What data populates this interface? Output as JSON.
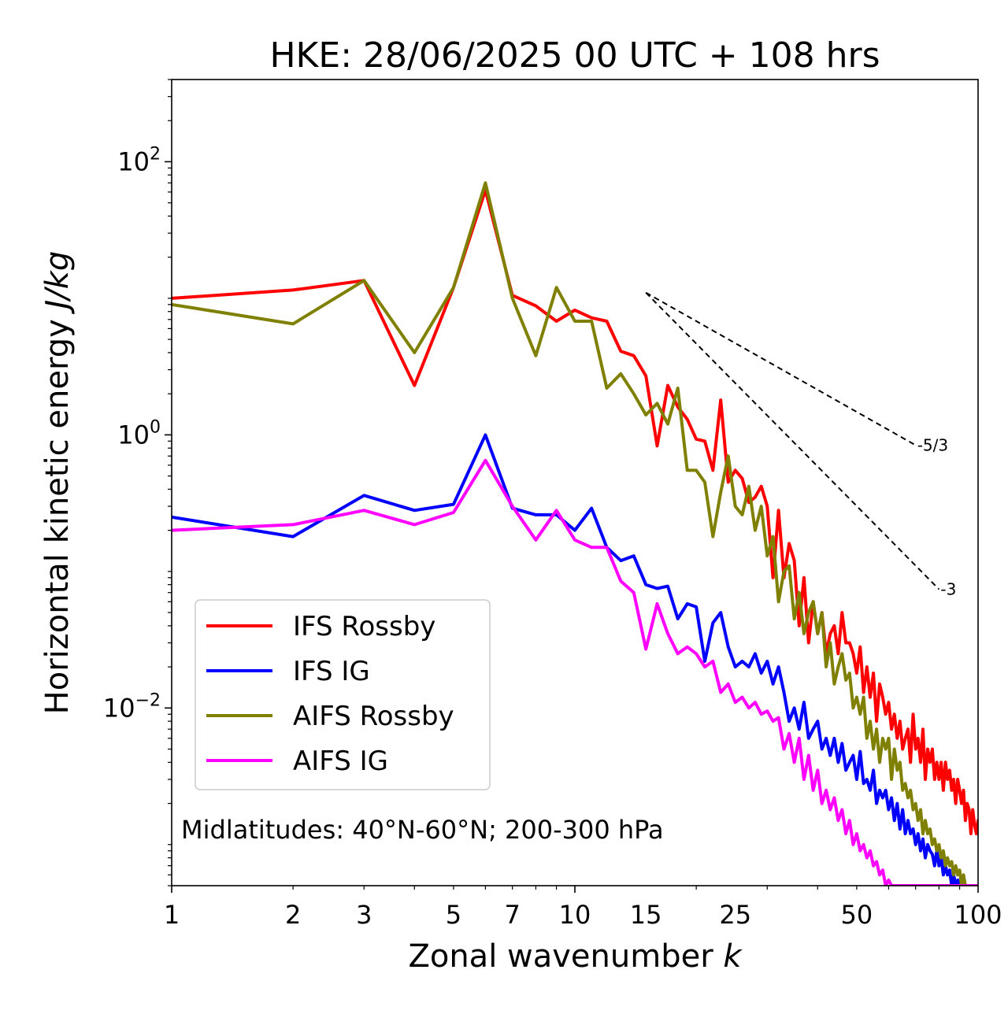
{
  "chart_data": {
    "type": "line",
    "title": "HKE: 28/06/2025 00 UTC + 108 hrs",
    "xlabel": "Zonal wavenumber",
    "xlabel_var": "k",
    "ylabel": "Horizontal kinetic energy",
    "ylabel_units": "J/kg",
    "x_scale": "log",
    "y_scale": "log",
    "xlim": [
      1,
      100
    ],
    "ylim": [
      0.0005,
      400
    ],
    "x_ticks": [
      {
        "value": 1,
        "label": "1"
      },
      {
        "value": 2,
        "label": "2"
      },
      {
        "value": 3,
        "label": "3"
      },
      {
        "value": 5,
        "label": "5"
      },
      {
        "value": 7,
        "label": "7"
      },
      {
        "value": 10,
        "label": "10"
      },
      {
        "value": 15,
        "label": "15"
      },
      {
        "value": 25,
        "label": "25"
      },
      {
        "value": 50,
        "label": "50"
      },
      {
        "value": 100,
        "label": "100"
      }
    ],
    "y_ticks": [
      {
        "value": 100,
        "base": "10",
        "exp": "2"
      },
      {
        "value": 1,
        "base": "10",
        "exp": "0"
      },
      {
        "value": 0.01,
        "base": "10",
        "exp": "−2"
      }
    ],
    "grid": false,
    "legend_position": "lower-left",
    "annotation": "Midlatitudes: 40°N-60°N; 200-300 hPa",
    "reference_slopes": [
      {
        "label": "-5/3",
        "x": [
          15,
          70
        ],
        "y": [
          11,
          0.84
        ]
      },
      {
        "label": "-3",
        "x": [
          15,
          80
        ],
        "y": [
          11,
          0.074
        ]
      }
    ],
    "series": [
      {
        "name": "IFS Rossby",
        "color": "#ff0000",
        "x": [
          1,
          2,
          3,
          4,
          5,
          6,
          7,
          8,
          9,
          10,
          11,
          12,
          13,
          14,
          15,
          16,
          17,
          18,
          19,
          20,
          21,
          22,
          23,
          24,
          25,
          26,
          27,
          28,
          29,
          30,
          31,
          32,
          33,
          34,
          35,
          36,
          37,
          38,
          39,
          40,
          41,
          42,
          43,
          44,
          45,
          46,
          47,
          48,
          49,
          50,
          51,
          52,
          53,
          54,
          55,
          56,
          57,
          58,
          59,
          60,
          61,
          62,
          63,
          64,
          65,
          66,
          67,
          68,
          69,
          70,
          71,
          72,
          73,
          74,
          75,
          76,
          77,
          78,
          79,
          80,
          81,
          82,
          83,
          84,
          85,
          86,
          87,
          88,
          89,
          90,
          91,
          92,
          93,
          94,
          95,
          96,
          97,
          98,
          99,
          100
        ],
        "y": [
          10,
          11.5,
          13.5,
          2.3,
          12,
          62,
          10.5,
          8.8,
          6.8,
          8.2,
          7.2,
          6.8,
          4.1,
          3.8,
          2.7,
          0.83,
          2.3,
          1.6,
          1.3,
          0.93,
          0.9,
          0.55,
          1.8,
          0.45,
          0.55,
          0.48,
          0.32,
          0.35,
          0.42,
          0.3,
          0.09,
          0.28,
          0.09,
          0.16,
          0.12,
          0.04,
          0.09,
          0.03,
          0.06,
          0.035,
          0.05,
          0.025,
          0.035,
          0.04,
          0.025,
          0.05,
          0.03,
          0.03,
          0.025,
          0.018,
          0.028,
          0.013,
          0.02,
          0.012,
          0.018,
          0.008,
          0.015,
          0.012,
          0.009,
          0.011,
          0.007,
          0.009,
          0.006,
          0.008,
          0.005,
          0.006,
          0.007,
          0.004,
          0.009,
          0.005,
          0.006,
          0.004,
          0.007,
          0.003,
          0.005,
          0.004,
          0.005,
          0.003,
          0.004,
          0.003,
          0.004,
          0.0025,
          0.004,
          0.003,
          0.0035,
          0.0025,
          0.003,
          0.002,
          0.003,
          0.0025,
          0.002,
          0.0025,
          0.0015,
          0.002,
          0.0018,
          0.0012,
          0.0018,
          0.0014,
          0.0012,
          0.0015
        ]
      },
      {
        "name": "IFS IG",
        "color": "#0000ff",
        "x": [
          1,
          2,
          3,
          4,
          5,
          6,
          7,
          8,
          9,
          10,
          11,
          12,
          13,
          14,
          15,
          16,
          17,
          18,
          19,
          20,
          21,
          22,
          23,
          24,
          25,
          26,
          27,
          28,
          29,
          30,
          31,
          32,
          33,
          34,
          35,
          36,
          37,
          38,
          39,
          40,
          41,
          42,
          43,
          44,
          45,
          46,
          47,
          48,
          49,
          50,
          51,
          52,
          53,
          54,
          55,
          56,
          57,
          58,
          59,
          60,
          61,
          62,
          63,
          64,
          65,
          66,
          67,
          68,
          69,
          70,
          71,
          72,
          73,
          74,
          75,
          76,
          77,
          78,
          79,
          80,
          81,
          82,
          83,
          84,
          85,
          86,
          87,
          88,
          89,
          90,
          91,
          92,
          93,
          94,
          95,
          96,
          97,
          98,
          99,
          100
        ],
        "y": [
          0.25,
          0.18,
          0.36,
          0.28,
          0.31,
          1.0,
          0.29,
          0.26,
          0.26,
          0.2,
          0.29,
          0.15,
          0.12,
          0.13,
          0.08,
          0.075,
          0.078,
          0.045,
          0.058,
          0.055,
          0.022,
          0.042,
          0.05,
          0.028,
          0.02,
          0.022,
          0.02,
          0.025,
          0.018,
          0.022,
          0.015,
          0.02,
          0.013,
          0.008,
          0.01,
          0.007,
          0.011,
          0.006,
          0.007,
          0.008,
          0.005,
          0.006,
          0.0045,
          0.006,
          0.004,
          0.0055,
          0.0035,
          0.004,
          0.0045,
          0.003,
          0.0048,
          0.0028,
          0.003,
          0.0025,
          0.0035,
          0.002,
          0.0025,
          0.0022,
          0.0025,
          0.0018,
          0.0022,
          0.0015,
          0.002,
          0.0013,
          0.0018,
          0.0012,
          0.0015,
          0.0012,
          0.0013,
          0.001,
          0.0012,
          0.0009,
          0.0011,
          0.0008,
          0.001,
          0.0009,
          0.00085,
          0.0007,
          0.0009,
          0.0007,
          0.0008,
          0.0006,
          0.0007,
          0.0006,
          0.00065,
          0.0005,
          0.0006,
          0.0005,
          0.00055,
          0.0005,
          0.0005,
          0.0005,
          0.0005,
          0.0005,
          0.0005,
          0.0005,
          0.0005,
          0.0005,
          0.0005,
          0.0005
        ]
      },
      {
        "name": "AIFS Rossby",
        "color": "#808000",
        "x": [
          1,
          2,
          3,
          4,
          5,
          6,
          7,
          8,
          9,
          10,
          11,
          12,
          13,
          14,
          15,
          16,
          17,
          18,
          19,
          20,
          21,
          22,
          23,
          24,
          25,
          26,
          27,
          28,
          29,
          30,
          31,
          32,
          33,
          34,
          35,
          36,
          37,
          38,
          39,
          40,
          41,
          42,
          43,
          44,
          45,
          46,
          47,
          48,
          49,
          50,
          51,
          52,
          53,
          54,
          55,
          56,
          57,
          58,
          59,
          60,
          61,
          62,
          63,
          64,
          65,
          66,
          67,
          68,
          69,
          70,
          71,
          72,
          73,
          74,
          75,
          76,
          77,
          78,
          79,
          80,
          81,
          82,
          83,
          84,
          85,
          86,
          87,
          88,
          89,
          90,
          91,
          92,
          93,
          94,
          95,
          96,
          97,
          98,
          99,
          100
        ],
        "y": [
          9,
          6.5,
          13.5,
          4,
          12,
          70,
          10,
          3.8,
          12,
          6.8,
          6.8,
          2.2,
          2.8,
          2.0,
          1.4,
          1.7,
          1.2,
          2.2,
          0.55,
          0.55,
          0.45,
          0.18,
          0.38,
          0.7,
          0.3,
          0.26,
          0.42,
          0.2,
          0.3,
          0.13,
          0.18,
          0.06,
          0.1,
          0.11,
          0.045,
          0.07,
          0.035,
          0.05,
          0.06,
          0.035,
          0.05,
          0.02,
          0.03,
          0.015,
          0.02,
          0.025,
          0.016,
          0.018,
          0.01,
          0.012,
          0.009,
          0.012,
          0.006,
          0.008,
          0.005,
          0.007,
          0.004,
          0.006,
          0.005,
          0.006,
          0.003,
          0.005,
          0.0035,
          0.004,
          0.0025,
          0.0028,
          0.0022,
          0.0025,
          0.0018,
          0.002,
          0.0015,
          0.0018,
          0.0012,
          0.0015,
          0.0012,
          0.0013,
          0.001,
          0.0011,
          0.0009,
          0.001,
          0.0008,
          0.0009,
          0.0007,
          0.0008,
          0.0007,
          0.00075,
          0.0006,
          0.0007,
          0.0006,
          0.00065,
          0.0005,
          0.0006,
          0.0005,
          0.0005,
          0.0005,
          0.0005,
          0.0005,
          0.0005,
          0.0005,
          0.0005
        ]
      },
      {
        "name": "AIFS IG",
        "color": "#ff00ff",
        "x": [
          1,
          2,
          3,
          4,
          5,
          6,
          7,
          8,
          9,
          10,
          11,
          12,
          13,
          14,
          15,
          16,
          17,
          18,
          19,
          20,
          21,
          22,
          23,
          24,
          25,
          26,
          27,
          28,
          29,
          30,
          31,
          32,
          33,
          34,
          35,
          36,
          37,
          38,
          39,
          40,
          41,
          42,
          43,
          44,
          45,
          46,
          47,
          48,
          49,
          50,
          51,
          52,
          53,
          54,
          55,
          56,
          57,
          58,
          59,
          60,
          61,
          62,
          63,
          64,
          65,
          66,
          67,
          68,
          69,
          70,
          71,
          72,
          73,
          74,
          75,
          76,
          77,
          78,
          79,
          80,
          81,
          82,
          83,
          84,
          85,
          86,
          87,
          88,
          89,
          90,
          91,
          92,
          93,
          94,
          95,
          96,
          97,
          98,
          99,
          100
        ],
        "y": [
          0.2,
          0.22,
          0.28,
          0.22,
          0.27,
          0.65,
          0.3,
          0.17,
          0.28,
          0.17,
          0.15,
          0.15,
          0.085,
          0.07,
          0.027,
          0.058,
          0.035,
          0.025,
          0.028,
          0.025,
          0.02,
          0.022,
          0.013,
          0.015,
          0.011,
          0.012,
          0.01,
          0.011,
          0.009,
          0.0095,
          0.008,
          0.0085,
          0.005,
          0.0065,
          0.004,
          0.006,
          0.003,
          0.0045,
          0.0025,
          0.0035,
          0.002,
          0.0025,
          0.0018,
          0.0022,
          0.0015,
          0.0018,
          0.0012,
          0.0015,
          0.001,
          0.0012,
          0.0009,
          0.001,
          0.0008,
          0.0009,
          0.0007,
          0.00075,
          0.0006,
          0.00065,
          0.0005,
          0.00055,
          0.0005,
          0.0005,
          0.0005,
          0.0005,
          0.0005,
          0.0005,
          0.0005,
          0.0005,
          0.0005,
          0.0005,
          0.0005,
          0.0005,
          0.0005,
          0.0005,
          0.0005,
          0.0005,
          0.0005,
          0.0005,
          0.0005,
          0.0005,
          0.0005,
          0.0005,
          0.0005,
          0.0005,
          0.0005,
          0.0005,
          0.0005,
          0.0005,
          0.0005,
          0.0005,
          0.0005,
          0.0005,
          0.0005,
          0.0005,
          0.0005,
          0.0005,
          0.0005,
          0.0005,
          0.0005,
          0.0005
        ]
      }
    ]
  }
}
